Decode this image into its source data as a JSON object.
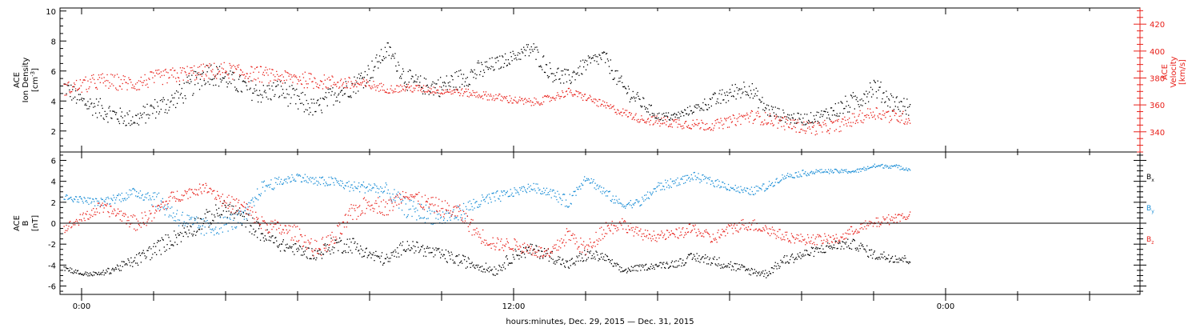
{
  "figure": {
    "xlabel": "hours:minutes, Dec. 29, 2015 — Dec. 31, 2015",
    "x_tick_labels": [
      "0:00",
      "12:00",
      "0:00"
    ],
    "x_tick_hours": [
      0,
      12,
      24
    ],
    "x_range_hours": [
      -0.6,
      29.4
    ]
  },
  "panel_top": {
    "left_axis": {
      "title_lines": [
        "ACE",
        "Ion Density"
      ],
      "unit_prefix": "[cm",
      "unit_sup": "-3",
      "unit_suffix": "]",
      "ylim": [
        0.6,
        10.2
      ],
      "ticks": [
        2,
        4,
        6,
        8,
        10
      ],
      "color": "#000000"
    },
    "right_axis": {
      "title_lines": [
        "ACE",
        "Velocity",
        "[km/s]"
      ],
      "ylim": [
        325,
        432
      ],
      "ticks": [
        340,
        360,
        380,
        400,
        420
      ],
      "color": "#e8201a"
    }
  },
  "panel_bottom": {
    "axis": {
      "title_lines": [
        "ACE",
        "B"
      ],
      "unit": "[nT]",
      "ylim": [
        -6.8,
        6.8
      ],
      "ticks": [
        -6,
        -4,
        -2,
        0,
        2,
        4,
        6
      ],
      "zero_line": true
    },
    "legend": [
      {
        "base": "B",
        "sub": "x",
        "color": "#000000"
      },
      {
        "base": "B",
        "sub": "y",
        "color": "#1b8ed6"
      },
      {
        "base": "B",
        "sub": "z",
        "color": "#e8201a"
      }
    ]
  },
  "chart_data": [
    {
      "type": "scatter",
      "x_unit": "hours since Dec. 29, 2015 0:00",
      "x_range": [
        -0.6,
        29.4
      ],
      "series": [
        {
          "name": "Ion Density",
          "axis": "left",
          "unit": "cm^-3",
          "color": "#000000",
          "x": [
            -0.5,
            0,
            0.5,
            1,
            1.5,
            2,
            2.5,
            3,
            3.5,
            4,
            4.5,
            5,
            5.5,
            6,
            6.5,
            7,
            7.5,
            8,
            8.5,
            9,
            9.5,
            10,
            10.5,
            11,
            11.5,
            12,
            12.5,
            13,
            13.5,
            14,
            14.5,
            15,
            15.5,
            16,
            16.5,
            17,
            17.5,
            18,
            18.5,
            19,
            19.5,
            20,
            20.5,
            21,
            21.5,
            22,
            22.5,
            23
          ],
          "values": [
            5,
            4,
            3.5,
            3,
            2.8,
            3.5,
            4,
            5,
            6,
            5.5,
            5,
            4.5,
            4.8,
            4,
            3.5,
            4.5,
            5,
            6,
            7.5,
            5.5,
            5,
            5,
            5.5,
            6,
            6.5,
            7,
            7.5,
            6,
            5.5,
            6.5,
            7,
            5,
            4,
            3,
            3,
            3.5,
            4,
            4.5,
            5,
            3.5,
            3,
            2.8,
            3,
            3.5,
            4,
            5,
            4,
            3.5
          ],
          "jitter": [
            0.6,
            0.6,
            0.7,
            0.6,
            0.6,
            0.7,
            0.7,
            0.8,
            0.8,
            0.7,
            0.7,
            0.7,
            0.7,
            0.8,
            0.6,
            0.7,
            0.7,
            0.7,
            0.5,
            0.7,
            0.6,
            0.7,
            0.7,
            0.7,
            0.5,
            0.4,
            0.6,
            0.6,
            0.6,
            0.5,
            0.5,
            0.6,
            0.5,
            0.3,
            0.3,
            0.3,
            0.5,
            0.6,
            0.6,
            0.5,
            0.4,
            0.4,
            0.4,
            0.6,
            0.7,
            0.7,
            0.6,
            0.6
          ]
        },
        {
          "name": "Velocity",
          "axis": "right",
          "unit": "km/s",
          "color": "#e8201a",
          "x": [
            -0.5,
            0,
            0.5,
            1,
            1.5,
            2,
            2.5,
            3,
            3.5,
            4,
            4.5,
            5,
            5.5,
            6,
            6.5,
            7,
            7.5,
            8,
            8.5,
            9,
            9.5,
            10,
            10.5,
            11,
            11.5,
            12,
            12.5,
            13,
            13.5,
            14,
            14.5,
            15,
            15.5,
            16,
            16.5,
            17,
            17.5,
            18,
            18.5,
            19,
            19.5,
            20,
            20.5,
            21,
            21.5,
            22,
            22.5,
            23
          ],
          "values": [
            372,
            375,
            378,
            377,
            376,
            380,
            382,
            384,
            385,
            386,
            384,
            383,
            381,
            380,
            378,
            377,
            376,
            375,
            372,
            373,
            372,
            371,
            370,
            368,
            366,
            364,
            362,
            365,
            370,
            366,
            360,
            355,
            350,
            348,
            347,
            346,
            345,
            348,
            352,
            350,
            347,
            344,
            343,
            345,
            350,
            355,
            352,
            350
          ],
          "jitter": [
            5,
            6,
            6,
            6,
            6,
            6,
            6,
            6,
            6,
            6,
            6,
            6,
            5,
            6,
            6,
            5,
            5,
            4,
            3,
            3,
            3,
            3,
            3,
            3,
            3,
            3,
            3,
            3,
            3,
            3,
            3,
            3,
            3,
            4,
            4,
            4,
            4,
            4,
            5,
            5,
            5,
            5,
            5,
            5,
            5,
            5,
            5,
            5
          ]
        }
      ]
    },
    {
      "type": "scatter",
      "x_unit": "hours since Dec. 29, 2015 0:00",
      "x_range": [
        -0.6,
        29.4
      ],
      "series": [
        {
          "name": "Bx",
          "unit": "nT",
          "color": "#000000",
          "x": [
            -0.5,
            0,
            0.5,
            1,
            1.5,
            2,
            2.5,
            3,
            3.5,
            4,
            4.5,
            5,
            5.5,
            6,
            6.5,
            7,
            7.5,
            8,
            8.5,
            9,
            9.5,
            10,
            10.5,
            11,
            11.5,
            12,
            12.5,
            13,
            13.5,
            14,
            14.5,
            15,
            15.5,
            16,
            16.5,
            17,
            17.5,
            18,
            18.5,
            19,
            19.5,
            20,
            20.5,
            21,
            21.5,
            22,
            22.5,
            23
          ],
          "values": [
            -4.2,
            -4.8,
            -4.8,
            -4.2,
            -3.5,
            -2.5,
            -1.5,
            -0.5,
            0.5,
            1.5,
            0.5,
            -1,
            -2,
            -2.5,
            -3,
            -2,
            -2,
            -3,
            -3.5,
            -2,
            -2.5,
            -3,
            -3.5,
            -4,
            -4.5,
            -3,
            -2.5,
            -3,
            -4,
            -3,
            -3.2,
            -4.5,
            -4.2,
            -4,
            -3.8,
            -3.2,
            -3.5,
            -4,
            -4.5,
            -4.8,
            -3.5,
            -3,
            -2.5,
            -2,
            -2,
            -3,
            -3.2,
            -3.5
          ],
          "jitter": [
            0.3,
            0.2,
            0.2,
            0.4,
            0.6,
            0.8,
            0.8,
            0.9,
            0.9,
            0.8,
            0.9,
            0.8,
            0.6,
            0.6,
            0.6,
            0.8,
            0.8,
            0.6,
            0.6,
            0.6,
            0.6,
            0.6,
            0.6,
            0.5,
            0.5,
            0.6,
            0.6,
            0.6,
            0.5,
            0.6,
            0.4,
            0.3,
            0.3,
            0.3,
            0.4,
            0.5,
            0.5,
            0.5,
            0.4,
            0.4,
            0.5,
            0.5,
            0.5,
            0.5,
            0.5,
            0.5,
            0.5,
            0.4
          ]
        },
        {
          "name": "By",
          "unit": "nT",
          "color": "#1b8ed6",
          "x": [
            -0.5,
            0,
            0.5,
            1,
            1.5,
            2,
            2.5,
            3,
            3.5,
            4,
            4.5,
            5,
            5.5,
            6,
            6.5,
            7,
            7.5,
            8,
            8.5,
            9,
            9.5,
            10,
            10.5,
            11,
            11.5,
            12,
            12.5,
            13,
            13.5,
            14,
            14.5,
            15,
            15.5,
            16,
            16.5,
            17,
            17.5,
            18,
            18.5,
            19,
            19.5,
            20,
            20.5,
            21,
            21.5,
            22,
            22.5,
            23
          ],
          "values": [
            2.5,
            2.3,
            2,
            2.5,
            3,
            2.5,
            1,
            0,
            -0.5,
            0,
            0.5,
            3.5,
            4,
            4.5,
            4,
            4,
            3.5,
            3.5,
            3,
            1.5,
            1,
            0.5,
            1,
            2,
            2.5,
            3,
            3.5,
            3,
            2,
            4.5,
            3,
            1.8,
            2,
            3.5,
            4,
            4.5,
            4,
            3.5,
            3,
            3.5,
            4.5,
            4.8,
            5,
            5,
            5,
            5.5,
            5.5,
            5.2
          ],
          "jitter": [
            0.3,
            0.3,
            0.4,
            0.5,
            0.5,
            0.8,
            0.9,
            0.9,
            0.9,
            0.8,
            0.9,
            0.6,
            0.5,
            0.4,
            0.5,
            0.5,
            0.5,
            0.6,
            0.8,
            0.9,
            0.9,
            0.8,
            0.8,
            0.7,
            0.6,
            0.4,
            0.4,
            0.5,
            0.6,
            0.4,
            0.5,
            0.4,
            0.4,
            0.5,
            0.4,
            0.4,
            0.4,
            0.4,
            0.4,
            0.4,
            0.3,
            0.3,
            0.2,
            0.2,
            0.2,
            0.2,
            0.2,
            0.2
          ]
        },
        {
          "name": "Bz",
          "unit": "nT",
          "color": "#e8201a",
          "x": [
            -0.5,
            0,
            0.5,
            1,
            1.5,
            2,
            2.5,
            3,
            3.5,
            4,
            4.5,
            5,
            5.5,
            6,
            6.5,
            7,
            7.5,
            8,
            8.5,
            9,
            9.5,
            10,
            10.5,
            11,
            11.5,
            12,
            12.5,
            13,
            13.5,
            14,
            14.5,
            15,
            15.5,
            16,
            16.5,
            17,
            17.5,
            18,
            18.5,
            19,
            19.5,
            20,
            20.5,
            21,
            21.5,
            22,
            22.5,
            23
          ],
          "values": [
            -0.5,
            0.5,
            1.5,
            1,
            0,
            1,
            2.5,
            3,
            3.5,
            2,
            1.5,
            0,
            -0.5,
            -1,
            -2.5,
            -1.5,
            1,
            2,
            1.5,
            3,
            2,
            1.5,
            1,
            -1,
            -2,
            -2,
            -2.5,
            -3,
            -1,
            -2.5,
            -0.5,
            0,
            -1,
            -1.2,
            -1,
            -0.5,
            -1.5,
            -0.5,
            0,
            -0.5,
            -1.2,
            -1.5,
            -1.5,
            -1.5,
            -0.5,
            0,
            0.5,
            0.8
          ],
          "jitter": [
            0.4,
            0.5,
            0.6,
            0.6,
            0.7,
            0.8,
            0.6,
            0.5,
            0.5,
            0.8,
            0.8,
            0.8,
            0.7,
            0.8,
            0.8,
            0.9,
            0.9,
            0.8,
            0.8,
            0.6,
            0.8,
            0.8,
            0.8,
            0.8,
            0.7,
            0.6,
            0.6,
            0.6,
            0.8,
            0.7,
            0.8,
            0.6,
            0.5,
            0.5,
            0.5,
            0.6,
            0.6,
            0.6,
            0.6,
            0.6,
            0.5,
            0.5,
            0.5,
            0.5,
            0.5,
            0.5,
            0.5,
            0.4
          ]
        }
      ]
    }
  ]
}
